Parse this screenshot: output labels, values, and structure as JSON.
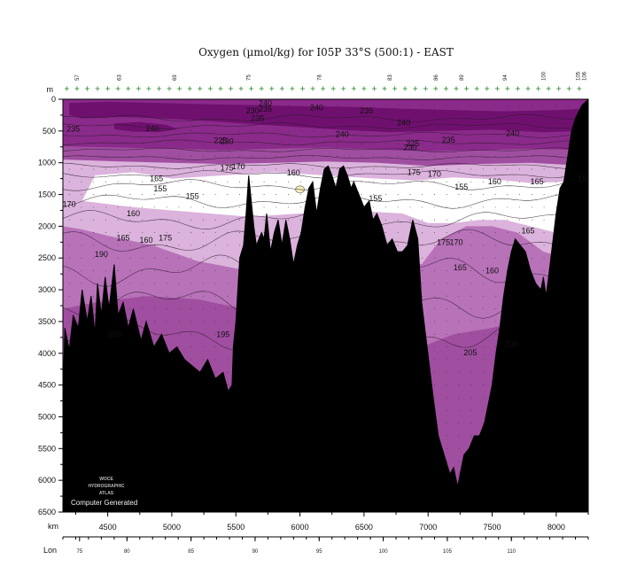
{
  "chart_data": {
    "type": "heatmap",
    "title": "Oxygen (µmol/kg) for I05P 33°S (500:1) - EAST",
    "y_unit_label": "m",
    "ylim": [
      0,
      6500
    ],
    "y_ticks": [
      0,
      500,
      1000,
      1500,
      2000,
      2500,
      3000,
      3500,
      4000,
      4500,
      5000,
      5500,
      6000,
      6500
    ],
    "x_unit_label": "km",
    "xlim": [
      4150,
      8250
    ],
    "x_ticks": [
      4500,
      5000,
      5500,
      6000,
      6500,
      7000,
      7500,
      8000
    ],
    "lon_label": "Lon",
    "lon_ticks": [
      {
        "km": 4280,
        "label": "75"
      },
      {
        "km": 4650,
        "label": "80"
      },
      {
        "km": 5150,
        "label": "85"
      },
      {
        "km": 5650,
        "label": "90"
      },
      {
        "km": 6150,
        "label": "95"
      },
      {
        "km": 6650,
        "label": "100"
      },
      {
        "km": 7150,
        "label": "105"
      },
      {
        "km": 7650,
        "label": "110"
      }
    ],
    "station_labels": [
      {
        "km": 4260,
        "label": "57"
      },
      {
        "km": 4590,
        "label": "63"
      },
      {
        "km": 5020,
        "label": "69"
      },
      {
        "km": 5600,
        "label": "75"
      },
      {
        "km": 6150,
        "label": "78"
      },
      {
        "km": 6700,
        "label": "83"
      },
      {
        "km": 7060,
        "label": "86"
      },
      {
        "km": 7260,
        "label": "89"
      },
      {
        "km": 7600,
        "label": "94"
      },
      {
        "km": 7900,
        "label": "100"
      },
      {
        "km": 8170,
        "label": "105"
      },
      {
        "km": 8220,
        "label": "106"
      }
    ],
    "color_classes": [
      {
        "range": "< 160",
        "color": "#ffffff"
      },
      {
        "range": "160-180",
        "color": "#dbb3dc"
      },
      {
        "range": "180-210",
        "color": "#b872b8"
      },
      {
        "range": "210-230",
        "color": "#a04ea0"
      },
      {
        "range": "230-245",
        "color": "#8a2a8a"
      },
      {
        "range": "> 245",
        "color": "#6f106f"
      }
    ],
    "contour_labels": [
      {
        "text": "240",
        "km": 5730,
        "depth": 60
      },
      {
        "text": "235",
        "km": 5730,
        "depth": 150
      },
      {
        "text": "230",
        "km": 5630,
        "depth": 180
      },
      {
        "text": "235",
        "km": 5670,
        "depth": 300
      },
      {
        "text": "240",
        "km": 6130,
        "depth": 130
      },
      {
        "text": "235",
        "km": 6520,
        "depth": 180
      },
      {
        "text": "235",
        "km": 4230,
        "depth": 470
      },
      {
        "text": "240",
        "km": 4850,
        "depth": 460
      },
      {
        "text": "240",
        "km": 6330,
        "depth": 550
      },
      {
        "text": "240",
        "km": 6810,
        "depth": 370
      },
      {
        "text": "240",
        "km": 7660,
        "depth": 540
      },
      {
        "text": "235",
        "km": 7160,
        "depth": 640
      },
      {
        "text": "225",
        "km": 5380,
        "depth": 650
      },
      {
        "text": "230",
        "km": 5430,
        "depth": 660
      },
      {
        "text": "225",
        "km": 6880,
        "depth": 700
      },
      {
        "text": "230",
        "km": 6860,
        "depth": 760
      },
      {
        "text": "175",
        "km": 5430,
        "depth": 1080
      },
      {
        "text": "170",
        "km": 5520,
        "depth": 1060
      },
      {
        "text": "175",
        "km": 6890,
        "depth": 1150
      },
      {
        "text": "170",
        "km": 7050,
        "depth": 1180
      },
      {
        "text": "165",
        "km": 4880,
        "depth": 1250
      },
      {
        "text": "160",
        "km": 5950,
        "depth": 1160
      },
      {
        "text": "155",
        "km": 4910,
        "depth": 1410
      },
      {
        "text": "155",
        "km": 5160,
        "depth": 1530
      },
      {
        "text": "155",
        "km": 6590,
        "depth": 1560
      },
      {
        "text": "155",
        "km": 7260,
        "depth": 1380
      },
      {
        "text": "160",
        "km": 7520,
        "depth": 1300
      },
      {
        "text": "165",
        "km": 7850,
        "depth": 1300
      },
      {
        "text": "155",
        "km": 8220,
        "depth": 1250
      },
      {
        "text": "170",
        "km": 4200,
        "depth": 1650
      },
      {
        "text": "160",
        "km": 4700,
        "depth": 1800
      },
      {
        "text": "165",
        "km": 4620,
        "depth": 2180
      },
      {
        "text": "160",
        "km": 4800,
        "depth": 2220
      },
      {
        "text": "175",
        "km": 4950,
        "depth": 2180
      },
      {
        "text": "190",
        "km": 4450,
        "depth": 2440
      },
      {
        "text": "175",
        "km": 7120,
        "depth": 2250
      },
      {
        "text": "170",
        "km": 7220,
        "depth": 2250
      },
      {
        "text": "165",
        "km": 7780,
        "depth": 2070
      },
      {
        "text": "165",
        "km": 7250,
        "depth": 2650
      },
      {
        "text": "160",
        "km": 7500,
        "depth": 2700
      },
      {
        "text": "200",
        "km": 4550,
        "depth": 3700
      },
      {
        "text": "195",
        "km": 5400,
        "depth": 3700
      },
      {
        "text": "200",
        "km": 7650,
        "depth": 3860
      },
      {
        "text": "205",
        "km": 7330,
        "depth": 3990
      }
    ],
    "bottom_topography_km_depth": [
      [
        4150,
        4700
      ],
      [
        4165,
        3600
      ],
      [
        4200,
        3950
      ],
      [
        4230,
        3400
      ],
      [
        4270,
        3600
      ],
      [
        4300,
        3000
      ],
      [
        4340,
        3500
      ],
      [
        4370,
        3100
      ],
      [
        4400,
        3700
      ],
      [
        4420,
        2900
      ],
      [
        4450,
        3400
      ],
      [
        4480,
        2800
      ],
      [
        4510,
        3300
      ],
      [
        4550,
        2600
      ],
      [
        4580,
        3400
      ],
      [
        4620,
        3200
      ],
      [
        4660,
        3600
      ],
      [
        4700,
        3300
      ],
      [
        4760,
        3800
      ],
      [
        4800,
        3500
      ],
      [
        4860,
        3900
      ],
      [
        4920,
        3700
      ],
      [
        4980,
        4000
      ],
      [
        5040,
        3900
      ],
      [
        5100,
        4100
      ],
      [
        5160,
        4200
      ],
      [
        5220,
        4300
      ],
      [
        5280,
        4100
      ],
      [
        5340,
        4400
      ],
      [
        5400,
        4300
      ],
      [
        5440,
        4600
      ],
      [
        5470,
        4500
      ],
      [
        5480,
        3900
      ],
      [
        5500,
        3500
      ],
      [
        5530,
        2500
      ],
      [
        5560,
        2300
      ],
      [
        5580,
        1800
      ],
      [
        5600,
        1200
      ],
      [
        5620,
        1600
      ],
      [
        5640,
        2000
      ],
      [
        5660,
        2300
      ],
      [
        5700,
        2100
      ],
      [
        5720,
        2200
      ],
      [
        5740,
        1800
      ],
      [
        5770,
        2400
      ],
      [
        5800,
        2100
      ],
      [
        5830,
        1900
      ],
      [
        5860,
        2300
      ],
      [
        5890,
        1900
      ],
      [
        5920,
        2200
      ],
      [
        5950,
        2600
      ],
      [
        5980,
        2300
      ],
      [
        6010,
        2100
      ],
      [
        6040,
        1700
      ],
      [
        6070,
        1400
      ],
      [
        6100,
        1300
      ],
      [
        6130,
        1800
      ],
      [
        6160,
        1400
      ],
      [
        6190,
        1100
      ],
      [
        6220,
        1050
      ],
      [
        6250,
        1200
      ],
      [
        6280,
        1400
      ],
      [
        6310,
        1100
      ],
      [
        6340,
        1050
      ],
      [
        6370,
        1200
      ],
      [
        6400,
        1400
      ],
      [
        6420,
        1300
      ],
      [
        6460,
        1500
      ],
      [
        6500,
        1700
      ],
      [
        6540,
        1600
      ],
      [
        6570,
        1900
      ],
      [
        6600,
        1800
      ],
      [
        6640,
        2000
      ],
      [
        6680,
        2300
      ],
      [
        6720,
        2200
      ],
      [
        6760,
        2400
      ],
      [
        6800,
        2400
      ],
      [
        6840,
        2300
      ],
      [
        6880,
        1900
      ],
      [
        6920,
        2200
      ],
      [
        6950,
        3200
      ],
      [
        6980,
        3700
      ],
      [
        7010,
        4200
      ],
      [
        7040,
        4700
      ],
      [
        7080,
        5300
      ],
      [
        7110,
        5500
      ],
      [
        7140,
        5700
      ],
      [
        7170,
        5900
      ],
      [
        7200,
        5800
      ],
      [
        7230,
        6100
      ],
      [
        7250,
        5900
      ],
      [
        7280,
        5600
      ],
      [
        7320,
        5500
      ],
      [
        7360,
        5300
      ],
      [
        7400,
        5300
      ],
      [
        7440,
        5100
      ],
      [
        7470,
        4800
      ],
      [
        7500,
        4500
      ],
      [
        7530,
        4000
      ],
      [
        7560,
        3600
      ],
      [
        7590,
        3100
      ],
      [
        7620,
        2700
      ],
      [
        7650,
        2400
      ],
      [
        7680,
        2200
      ],
      [
        7720,
        2300
      ],
      [
        7760,
        2400
      ],
      [
        7800,
        2700
      ],
      [
        7840,
        2900
      ],
      [
        7880,
        3000
      ],
      [
        7900,
        2800
      ],
      [
        7920,
        3100
      ],
      [
        7940,
        2800
      ],
      [
        7970,
        2300
      ],
      [
        8000,
        1800
      ],
      [
        8030,
        1400
      ],
      [
        8060,
        1300
      ],
      [
        8090,
        900
      ],
      [
        8120,
        500
      ],
      [
        8150,
        300
      ],
      [
        8200,
        100
      ],
      [
        8250,
        0
      ]
    ],
    "credit_text": "Computer Generated",
    "logo_lines": [
      "WOCE",
      "HYDROGRAPHIC",
      "ATLAS"
    ]
  }
}
